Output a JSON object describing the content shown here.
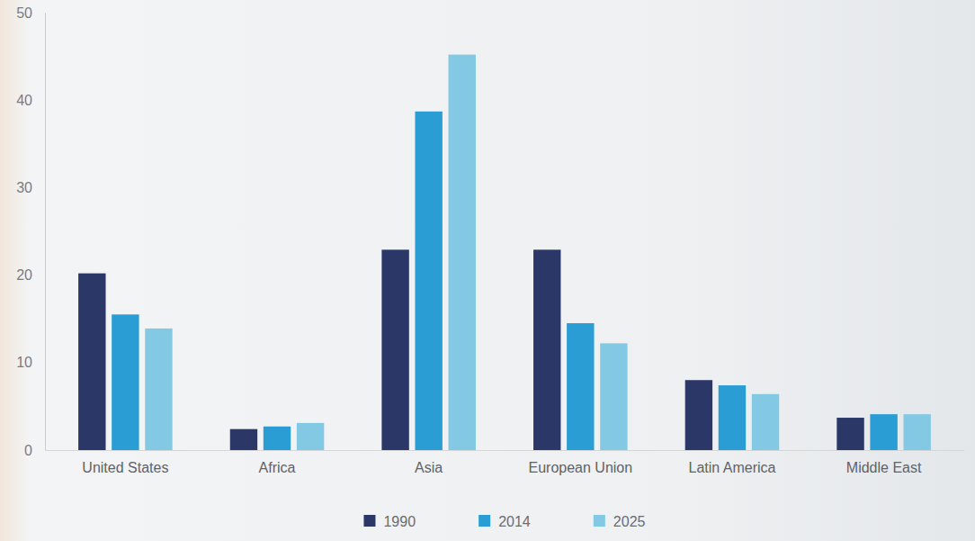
{
  "chart_data": {
    "type": "bar",
    "categories": [
      "United States",
      "Africa",
      "Asia",
      "European Union",
      "Latin America",
      "Middle East"
    ],
    "series": [
      {
        "name": "1990",
        "color": "#2b3766",
        "values": [
          20.2,
          2.4,
          22.9,
          22.9,
          8.0,
          3.7
        ]
      },
      {
        "name": "2014",
        "color": "#2a9dd4",
        "values": [
          15.5,
          2.7,
          38.7,
          14.5,
          7.4,
          4.1
        ]
      },
      {
        "name": "2025",
        "color": "#84c9e4",
        "values": [
          13.9,
          3.1,
          45.2,
          12.2,
          6.4,
          4.1
        ]
      }
    ],
    "ylim": [
      0,
      50
    ],
    "yticks": [
      0,
      10,
      20,
      30,
      40,
      50
    ],
    "grid": false,
    "legend": "bottom"
  }
}
